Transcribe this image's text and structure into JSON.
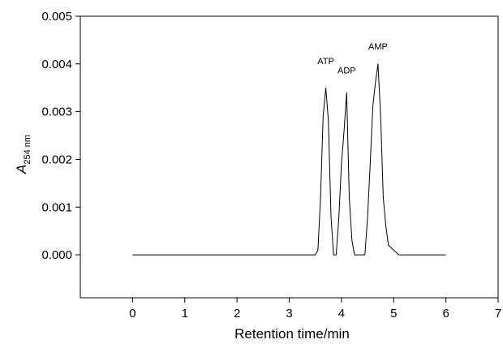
{
  "chart_data": {
    "type": "line",
    "xlabel": "Retention time/min",
    "ylabel": {
      "main": "A",
      "subscript": "254 nm"
    },
    "xlim": [
      -1,
      7
    ],
    "ylim": [
      -0.0009,
      0.005
    ],
    "xticks": [
      0,
      1,
      2,
      3,
      4,
      5,
      6,
      7
    ],
    "xtick_labels": [
      "0",
      "1",
      "2",
      "3",
      "4",
      "5",
      "6",
      "7"
    ],
    "yticks": [
      0,
      0.001,
      0.002,
      0.003,
      0.004,
      0.005
    ],
    "ytick_labels": [
      "0.000",
      "0.001",
      "0.002",
      "0.003",
      "0.004",
      "0.005"
    ],
    "grid": false,
    "series": [
      {
        "color": "#000000",
        "x": [
          0.0,
          3.5,
          3.55,
          3.6,
          3.65,
          3.7,
          3.75,
          3.8,
          3.85,
          3.9,
          3.95,
          4.0,
          4.05,
          4.1,
          4.15,
          4.2,
          4.25,
          4.3,
          4.35,
          4.45,
          4.5,
          4.55,
          4.6,
          4.65,
          4.7,
          4.75,
          4.8,
          4.85,
          4.9,
          5.1,
          6.0
        ],
        "y": [
          0.0,
          0.0,
          0.0001,
          0.0012,
          0.0029,
          0.0035,
          0.0028,
          0.0008,
          0.0,
          0.0,
          0.0008,
          0.0019,
          0.0026,
          0.0034,
          0.0012,
          0.0003,
          0.0,
          0.0,
          0.0,
          0.0,
          0.0008,
          0.0019,
          0.0031,
          0.0036,
          0.004,
          0.0029,
          0.0012,
          0.0006,
          0.0002,
          0.0,
          0.0
        ]
      }
    ],
    "annotations": [
      {
        "text": "ATP",
        "x": 3.7,
        "y": 0.004
      },
      {
        "text": "ADP",
        "x": 4.1,
        "y": 0.0038
      },
      {
        "text": "AMP",
        "x": 4.7,
        "y": 0.0043
      }
    ]
  }
}
